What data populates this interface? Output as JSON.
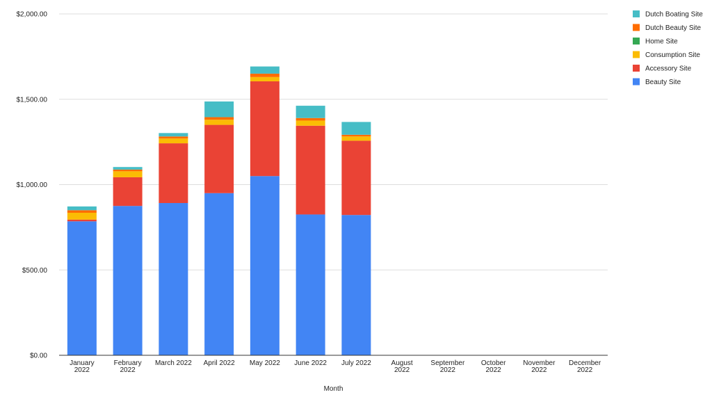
{
  "chart_data": {
    "type": "bar",
    "stacked": true,
    "xlabel": "Month",
    "ylabel": "",
    "ylim": [
      0,
      2000
    ],
    "yticks": [
      "$0.00",
      "$500.00",
      "$1,000.00",
      "$1,500.00",
      "$2,000.00"
    ],
    "grid": true,
    "legend_position": "right",
    "categories": [
      "January 2022",
      "February 2022",
      "March 2022",
      "April 2022",
      "May 2022",
      "June 2022",
      "July 2022",
      "August 2022",
      "September 2022",
      "October 2022",
      "November 2022",
      "December 2022"
    ],
    "series": [
      {
        "name": "Beauty Site",
        "color": "#4285f4",
        "values": [
          785,
          875,
          892,
          950,
          1050,
          825,
          822,
          0,
          0,
          0,
          0,
          0
        ]
      },
      {
        "name": "Accessory Site",
        "color": "#ea4335",
        "values": [
          10,
          168,
          350,
          400,
          555,
          520,
          435,
          0,
          0,
          0,
          0,
          0
        ]
      },
      {
        "name": "Consumption Site",
        "color": "#fbbc04",
        "values": [
          40,
          35,
          28,
          30,
          25,
          30,
          25,
          0,
          0,
          0,
          0,
          0
        ]
      },
      {
        "name": "Home Site",
        "color": "#34a853",
        "values": [
          0,
          0,
          0,
          0,
          0,
          0,
          0,
          0,
          0,
          0,
          0,
          0
        ]
      },
      {
        "name": "Dutch Beauty Site",
        "color": "#ff6d01",
        "values": [
          15,
          10,
          12,
          15,
          20,
          15,
          10,
          0,
          0,
          0,
          0,
          0
        ]
      },
      {
        "name": "Dutch Boating Site",
        "color": "#46bdc6",
        "values": [
          22,
          15,
          20,
          92,
          42,
          72,
          75,
          0,
          0,
          0,
          0,
          0
        ]
      }
    ]
  }
}
